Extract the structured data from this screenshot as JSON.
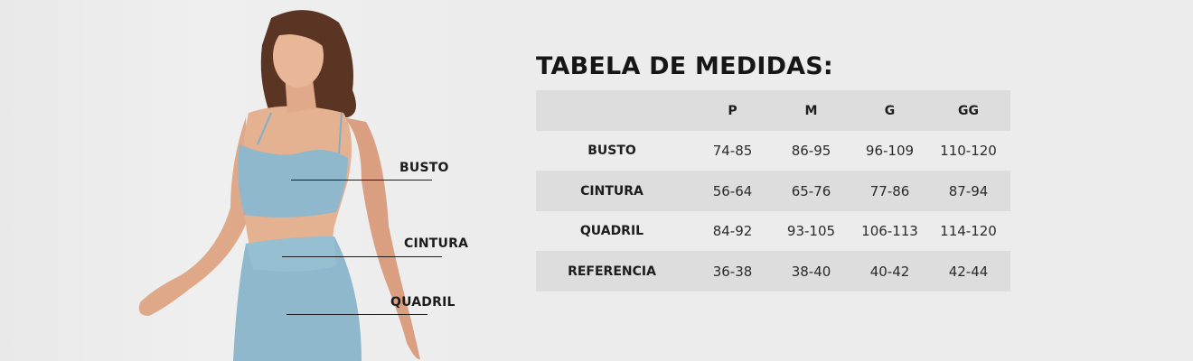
{
  "title": "TABELA DE MEDIDAS:",
  "colors": {
    "background": "#ececec",
    "row_shade": "#dddddd",
    "text": "#1c1c1c",
    "garment": "#8fb8cc"
  },
  "figure": {
    "labels": {
      "busto": "BUSTO",
      "cintura": "CINTURA",
      "quadril": "QUADRIL"
    }
  },
  "table": {
    "headers": [
      "",
      "P",
      "M",
      "G",
      "GG"
    ],
    "rows": [
      {
        "label": "BUSTO",
        "values": [
          "74-85",
          "86-95",
          "96-109",
          "110-120"
        ]
      },
      {
        "label": "CINTURA",
        "values": [
          "56-64",
          "65-76",
          "77-86",
          "87-94"
        ]
      },
      {
        "label": "QUADRIL",
        "values": [
          "84-92",
          "93-105",
          "106-113",
          "114-120"
        ]
      },
      {
        "label": "REFERENCIA",
        "values": [
          "36-38",
          "38-40",
          "40-42",
          "42-44"
        ]
      }
    ]
  }
}
